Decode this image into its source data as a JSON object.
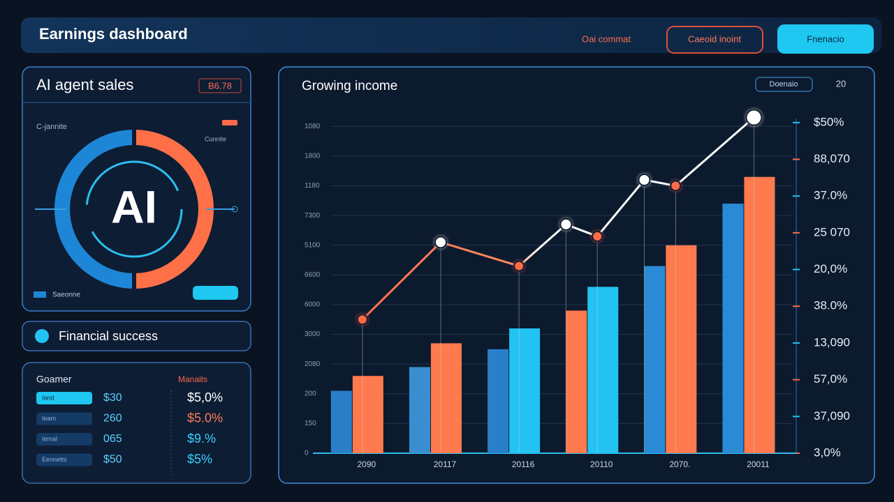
{
  "header": {
    "title": "Earnings dashboard",
    "link": "Oai commat",
    "button_outline": "Caeoid inoint",
    "button_primary": "Fnenacio"
  },
  "sales_panel": {
    "title": "AI agent sales",
    "badge": "B6.78",
    "label": "C-jannite",
    "sublabel": "Cunnite",
    "center": "AI",
    "legend": "Saeonne"
  },
  "success_panel": {
    "title": "Financial success"
  },
  "table": {
    "headers": [
      "Goamer",
      "Manaits"
    ],
    "rows": [
      [
        "Iand",
        "$30",
        "$5,0%"
      ],
      [
        "Ieam",
        "260",
        "$5.0%"
      ],
      [
        "Iemal",
        "065",
        "$9.%"
      ],
      [
        "Eennetts",
        "$50",
        "$5%"
      ]
    ]
  },
  "chart_data": {
    "type": "bar",
    "title": "Growing income",
    "button": "Doenaio",
    "corner": "20",
    "categories": [
      "2090",
      "20117",
      "20116",
      "20110",
      "2070.",
      "20011"
    ],
    "series": [
      {
        "colors": [
          "#2a7fc9",
          "#3a8ed0",
          "#2a7fc9",
          "#ff7a4e",
          "#2a8ad6",
          "#2a8ad6"
        ],
        "values": [
          2.1,
          2.9,
          3.5,
          4.8,
          6.3,
          8.4
        ]
      },
      {
        "colors": [
          "#ff7a4e",
          "#ff7a4e",
          "#22c3f2",
          "#22c3f2",
          "#ff7a4e",
          "#ff7a4e"
        ],
        "values": [
          2.6,
          3.7,
          4.2,
          5.6,
          7.0,
          9.3
        ]
      }
    ],
    "line": {
      "x": [
        0,
        1,
        2,
        2.6,
        3,
        3.6,
        4,
        5
      ],
      "values": [
        4.5,
        7.1,
        6.3,
        7.7,
        7.3,
        9.2,
        9.0,
        11.3
      ],
      "colors": [
        "#ff6a4a",
        "#ffffff",
        "#ff6a4a",
        "#ffffff",
        "#ff6a4a",
        "#ffffff",
        "#ff6a4a",
        "#ffffff"
      ]
    },
    "xlim": [
      -0.4,
      5.54
    ],
    "ylim": [
      0,
      11.5
    ],
    "yticks": [
      {
        "value": 0,
        "label": "0"
      },
      {
        "value": 1,
        "label": "150"
      },
      {
        "value": 2,
        "label": "200"
      },
      {
        "value": 3,
        "label": "2080"
      },
      {
        "value": 4,
        "label": "3000"
      },
      {
        "value": 5,
        "label": "6000"
      },
      {
        "value": 6,
        "label": "6600"
      },
      {
        "value": 7,
        "label": "5100"
      },
      {
        "value": 8,
        "label": "7300"
      },
      {
        "value": 9,
        "label": "1180"
      },
      {
        "value": 10,
        "label": "1800"
      },
      {
        "value": 11,
        "label": "1080"
      }
    ],
    "y2lim": [
      0,
      9.3
    ],
    "y2ticks": [
      {
        "value": 0,
        "label": "3,0%"
      },
      {
        "value": 1,
        "label": "37,090"
      },
      {
        "value": 2,
        "label": "57,0%"
      },
      {
        "value": 3,
        "label": "13,090"
      },
      {
        "value": 4,
        "label": "38.0%"
      },
      {
        "value": 5,
        "label": "20,0%"
      },
      {
        "value": 6,
        "label": "25 070"
      },
      {
        "value": 7,
        "label": "37.0%"
      },
      {
        "value": 8,
        "label": "88,070"
      },
      {
        "value": 9,
        "label": "$50%"
      }
    ],
    "grid": true
  }
}
